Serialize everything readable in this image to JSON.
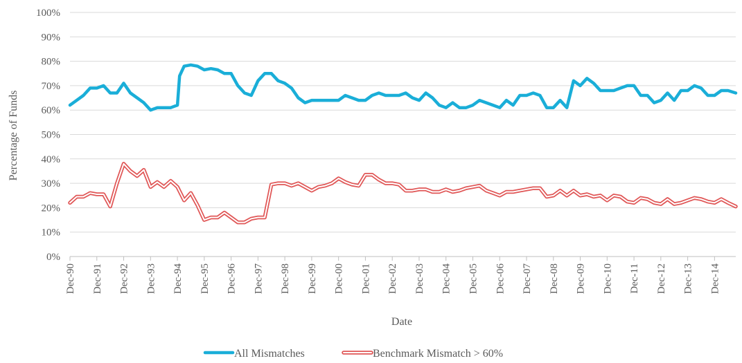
{
  "chart_data": {
    "type": "line",
    "title": "",
    "xlabel": "Date",
    "ylabel": "Percentage of Funds",
    "ylim": [
      0,
      100
    ],
    "y_ticks": [
      "0%",
      "10%",
      "20%",
      "30%",
      "40%",
      "50%",
      "60%",
      "70%",
      "80%",
      "90%",
      "100%"
    ],
    "x_tick_labels": [
      "Dec-90",
      "Dec-91",
      "Dec-92",
      "Dec-93",
      "Dec-94",
      "Dec-95",
      "Dec-96",
      "Dec-97",
      "Dec-98",
      "Dec-99",
      "Dec-00",
      "Dec-01",
      "Dec-02",
      "Dec-03",
      "Dec-04",
      "Dec-05",
      "Dec-06",
      "Dec-07",
      "Dec-08",
      "Dec-09",
      "Dec-10",
      "Dec-11",
      "Dec-12",
      "Dec-13",
      "Dec-14"
    ],
    "x_range": [
      1990.92,
      2015.71
    ],
    "grid": true,
    "legend_position": "bottom",
    "series": [
      {
        "name": "All Mismatches",
        "color": "#1aaed8",
        "style": "solid",
        "points": [
          [
            1990.92,
            62
          ],
          [
            1991.17,
            64
          ],
          [
            1991.42,
            66
          ],
          [
            1991.67,
            69
          ],
          [
            1991.92,
            69
          ],
          [
            1992.17,
            70
          ],
          [
            1992.42,
            67
          ],
          [
            1992.67,
            67
          ],
          [
            1992.92,
            71
          ],
          [
            1993.17,
            67
          ],
          [
            1993.42,
            65
          ],
          [
            1993.67,
            63
          ],
          [
            1993.92,
            60
          ],
          [
            1994.17,
            61
          ],
          [
            1994.42,
            61
          ],
          [
            1994.67,
            61
          ],
          [
            1994.92,
            62
          ],
          [
            1995.0,
            74
          ],
          [
            1995.17,
            78
          ],
          [
            1995.42,
            78.5
          ],
          [
            1995.67,
            78
          ],
          [
            1995.92,
            76.5
          ],
          [
            1996.17,
            77
          ],
          [
            1996.42,
            76.5
          ],
          [
            1996.67,
            75
          ],
          [
            1996.92,
            75
          ],
          [
            1997.17,
            70
          ],
          [
            1997.42,
            67
          ],
          [
            1997.67,
            66
          ],
          [
            1997.92,
            72
          ],
          [
            1998.17,
            75
          ],
          [
            1998.42,
            75
          ],
          [
            1998.67,
            72
          ],
          [
            1998.92,
            71
          ],
          [
            1999.17,
            69
          ],
          [
            1999.42,
            65
          ],
          [
            1999.67,
            63
          ],
          [
            1999.92,
            64
          ],
          [
            2000.17,
            64
          ],
          [
            2000.42,
            64
          ],
          [
            2000.67,
            64
          ],
          [
            2000.92,
            64
          ],
          [
            2001.17,
            66
          ],
          [
            2001.42,
            65
          ],
          [
            2001.67,
            64
          ],
          [
            2001.92,
            64
          ],
          [
            2002.17,
            66
          ],
          [
            2002.42,
            67
          ],
          [
            2002.67,
            66
          ],
          [
            2002.92,
            66
          ],
          [
            2003.17,
            66
          ],
          [
            2003.42,
            67
          ],
          [
            2003.67,
            65
          ],
          [
            2003.92,
            64
          ],
          [
            2004.17,
            67
          ],
          [
            2004.42,
            65
          ],
          [
            2004.67,
            62
          ],
          [
            2004.92,
            61
          ],
          [
            2005.17,
            63
          ],
          [
            2005.42,
            61
          ],
          [
            2005.67,
            61
          ],
          [
            2005.92,
            62
          ],
          [
            2006.17,
            64
          ],
          [
            2006.42,
            63
          ],
          [
            2006.67,
            62
          ],
          [
            2006.92,
            61
          ],
          [
            2007.17,
            64
          ],
          [
            2007.42,
            62
          ],
          [
            2007.67,
            66
          ],
          [
            2007.92,
            66
          ],
          [
            2008.17,
            67
          ],
          [
            2008.42,
            66
          ],
          [
            2008.67,
            61
          ],
          [
            2008.92,
            61
          ],
          [
            2009.17,
            64
          ],
          [
            2009.42,
            61
          ],
          [
            2009.67,
            72
          ],
          [
            2009.92,
            70
          ],
          [
            2010.17,
            73
          ],
          [
            2010.42,
            71
          ],
          [
            2010.67,
            68
          ],
          [
            2010.92,
            68
          ],
          [
            2011.17,
            68
          ],
          [
            2011.42,
            69
          ],
          [
            2011.67,
            70
          ],
          [
            2011.92,
            70
          ],
          [
            2012.17,
            66
          ],
          [
            2012.42,
            66
          ],
          [
            2012.67,
            63
          ],
          [
            2012.92,
            64
          ],
          [
            2013.17,
            67
          ],
          [
            2013.42,
            64
          ],
          [
            2013.67,
            68
          ],
          [
            2013.92,
            68
          ],
          [
            2014.17,
            70
          ],
          [
            2014.42,
            69
          ],
          [
            2014.67,
            66
          ],
          [
            2014.92,
            66
          ],
          [
            2015.17,
            68
          ],
          [
            2015.42,
            68
          ],
          [
            2015.71,
            67
          ]
        ]
      },
      {
        "name": "Benchmark Mismatch > 60%",
        "color": "#e05656",
        "style": "double",
        "points": [
          [
            1990.92,
            22
          ],
          [
            1991.17,
            24.5
          ],
          [
            1991.42,
            24.5
          ],
          [
            1991.67,
            26
          ],
          [
            1991.92,
            25.5
          ],
          [
            1992.17,
            25.5
          ],
          [
            1992.42,
            20.5
          ],
          [
            1992.67,
            30
          ],
          [
            1992.92,
            38
          ],
          [
            1993.17,
            35
          ],
          [
            1993.42,
            33
          ],
          [
            1993.67,
            35.5
          ],
          [
            1993.92,
            28.5
          ],
          [
            1994.17,
            30.5
          ],
          [
            1994.42,
            28.5
          ],
          [
            1994.67,
            31
          ],
          [
            1994.92,
            28.5
          ],
          [
            1995.17,
            23
          ],
          [
            1995.42,
            26
          ],
          [
            1995.67,
            21
          ],
          [
            1995.92,
            15
          ],
          [
            1996.17,
            16
          ],
          [
            1996.42,
            16
          ],
          [
            1996.67,
            18
          ],
          [
            1996.92,
            16
          ],
          [
            1997.17,
            14
          ],
          [
            1997.42,
            14
          ],
          [
            1997.67,
            15.5
          ],
          [
            1997.92,
            16
          ],
          [
            1998.17,
            16
          ],
          [
            1998.42,
            29.5
          ],
          [
            1998.67,
            30
          ],
          [
            1998.92,
            30
          ],
          [
            1999.17,
            29
          ],
          [
            1999.42,
            30
          ],
          [
            1999.67,
            28.5
          ],
          [
            1999.92,
            27
          ],
          [
            2000.17,
            28.5
          ],
          [
            2000.42,
            29
          ],
          [
            2000.67,
            30
          ],
          [
            2000.92,
            32
          ],
          [
            2001.17,
            30.5
          ],
          [
            2001.42,
            29.5
          ],
          [
            2001.67,
            29
          ],
          [
            2001.92,
            33.5
          ],
          [
            2002.17,
            33.5
          ],
          [
            2002.42,
            31.5
          ],
          [
            2002.67,
            30
          ],
          [
            2002.92,
            30
          ],
          [
            2003.17,
            29.5
          ],
          [
            2003.42,
            27
          ],
          [
            2003.67,
            27
          ],
          [
            2003.92,
            27.5
          ],
          [
            2004.17,
            27.5
          ],
          [
            2004.42,
            26.5
          ],
          [
            2004.67,
            26.5
          ],
          [
            2004.92,
            27.5
          ],
          [
            2005.17,
            26.5
          ],
          [
            2005.42,
            27
          ],
          [
            2005.67,
            28
          ],
          [
            2005.92,
            28.5
          ],
          [
            2006.17,
            29
          ],
          [
            2006.42,
            27
          ],
          [
            2006.67,
            26
          ],
          [
            2006.92,
            25
          ],
          [
            2007.17,
            26.5
          ],
          [
            2007.42,
            26.5
          ],
          [
            2007.67,
            27
          ],
          [
            2007.92,
            27.5
          ],
          [
            2008.17,
            28
          ],
          [
            2008.42,
            28
          ],
          [
            2008.67,
            24.5
          ],
          [
            2008.92,
            25
          ],
          [
            2009.17,
            27
          ],
          [
            2009.42,
            25
          ],
          [
            2009.67,
            27
          ],
          [
            2009.92,
            25
          ],
          [
            2010.17,
            25.5
          ],
          [
            2010.42,
            24.5
          ],
          [
            2010.67,
            25
          ],
          [
            2010.92,
            23
          ],
          [
            2011.17,
            25
          ],
          [
            2011.42,
            24.5
          ],
          [
            2011.67,
            22.5
          ],
          [
            2011.92,
            22
          ],
          [
            2012.17,
            24
          ],
          [
            2012.42,
            23.5
          ],
          [
            2012.67,
            22
          ],
          [
            2012.92,
            21.5
          ],
          [
            2013.17,
            23.5
          ],
          [
            2013.42,
            21.5
          ],
          [
            2013.67,
            22
          ],
          [
            2013.92,
            23
          ],
          [
            2014.17,
            24
          ],
          [
            2014.42,
            23.5
          ],
          [
            2014.67,
            22.5
          ],
          [
            2014.92,
            22
          ],
          [
            2015.17,
            23.5
          ],
          [
            2015.42,
            22
          ],
          [
            2015.71,
            20.5
          ]
        ]
      }
    ]
  },
  "colors": {
    "gridline": "#d9d9d9",
    "axis_line": "#bfbfbf",
    "text": "#5a5a5a",
    "background": "#ffffff"
  }
}
